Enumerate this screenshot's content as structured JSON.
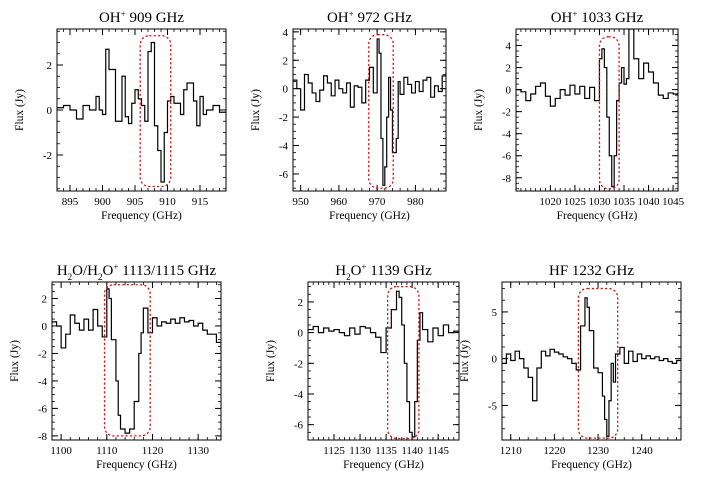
{
  "chart_data": [
    {
      "type": "line",
      "title_main": "OH",
      "title_sup": "+",
      "title_rest": " 909 GHz",
      "xlabel": "Frequency (GHz)",
      "ylabel": "Flux (Jy)",
      "xlim": [
        893,
        919
      ],
      "ylim": [
        -3.6,
        3.6
      ],
      "xticks": [
        895,
        900,
        905,
        910,
        915
      ],
      "yticks": [
        -2,
        0,
        2
      ],
      "highlight": {
        "x": [
          905.8,
          910.5
        ],
        "y": [
          -3.4,
          3.3
        ]
      },
      "series": [
        {
          "x": [
            893,
            894,
            895,
            896,
            897,
            898,
            899,
            899.5,
            900,
            900.5,
            901,
            902,
            903,
            903.5,
            904,
            904.5,
            905,
            905.5,
            906,
            906.5,
            907,
            907.5,
            908,
            908.5,
            909,
            909.5,
            910,
            910.5,
            911,
            912,
            912.5,
            913,
            914,
            914.5,
            915,
            915.5,
            916,
            917,
            918,
            919
          ],
          "y": [
            0.1,
            0.2,
            0.0,
            -0.4,
            0.2,
            0.0,
            0.6,
            0.0,
            -0.2,
            2.7,
            1.8,
            -0.5,
            1.5,
            -0.3,
            -0.6,
            0.3,
            0.9,
            0.5,
            0.2,
            -0.5,
            2.6,
            3.0,
            -0.7,
            -1.8,
            -3.2,
            -1.0,
            0.4,
            0.6,
            0.3,
            -0.2,
            0.9,
            1.2,
            0.4,
            -0.7,
            0.6,
            -0.2,
            0.0,
            0.2,
            -0.1,
            0.0
          ]
        }
      ]
    },
    {
      "type": "line",
      "title_main": "OH",
      "title_sup": "+",
      "title_rest": " 972 GHz",
      "xlabel": "Frequency (GHz)",
      "ylabel": "Flux (Jy)",
      "xlim": [
        948,
        988
      ],
      "ylim": [
        -7.2,
        4.2
      ],
      "xticks": [
        950,
        960,
        970,
        980
      ],
      "yticks": [
        -6,
        -4,
        -2,
        0,
        2,
        4
      ],
      "highlight": {
        "x": [
          967.8,
          974.2
        ],
        "y": [
          -7.0,
          3.8
        ]
      },
      "series": [
        {
          "x": [
            948,
            949,
            950,
            951,
            952,
            953,
            954,
            955,
            956,
            957,
            958,
            959,
            960,
            961,
            962,
            963,
            964,
            965,
            966,
            967,
            968,
            969,
            970,
            970.5,
            971,
            971.5,
            972,
            972.5,
            973,
            973.5,
            974,
            975,
            975.5,
            976,
            977,
            978,
            979,
            980,
            981,
            982,
            983,
            984,
            985,
            986,
            987,
            988
          ],
          "y": [
            0.6,
            0.0,
            -1.5,
            1.0,
            0.4,
            -0.3,
            -0.9,
            -0.1,
            0.9,
            0.4,
            -0.5,
            0.6,
            0.0,
            -0.3,
            0.4,
            -1.3,
            0.2,
            0.1,
            -1.0,
            0.6,
            1.5,
            -0.3,
            3.5,
            2.5,
            -3.5,
            -6.8,
            -5.5,
            -2.0,
            0.8,
            -1.5,
            -4.5,
            -3.5,
            0.5,
            -0.4,
            0.8,
            0.3,
            -0.3,
            0.5,
            -0.2,
            0.6,
            0.8,
            -0.6,
            0.2,
            -0.2,
            0.9,
            1.2
          ]
        }
      ]
    },
    {
      "type": "line",
      "title_main": "OH",
      "title_sup": "+",
      "title_rest": " 1033 GHz",
      "xlabel": "Frequency (GHz)",
      "ylabel": "Flux (Jy)",
      "xlim": [
        1013,
        1046
      ],
      "ylim": [
        -9.2,
        5.5
      ],
      "xticks": [
        1020,
        1025,
        1030,
        1035,
        1040,
        1045
      ],
      "yticks": [
        -8,
        -6,
        -4,
        -2,
        0,
        2,
        4
      ],
      "highlight": {
        "x": [
          1030.0,
          1034.0
        ],
        "y": [
          -9.0,
          4.8
        ]
      },
      "series": [
        {
          "x": [
            1013,
            1014,
            1015,
            1016,
            1017,
            1018,
            1019,
            1020,
            1021,
            1022,
            1023,
            1024,
            1025,
            1026,
            1027,
            1028,
            1029,
            1030,
            1030.5,
            1031,
            1031.5,
            1032,
            1032.5,
            1033,
            1033.5,
            1034,
            1034.5,
            1035,
            1035.5,
            1036,
            1037,
            1038,
            1039,
            1040,
            1041,
            1042,
            1043,
            1044,
            1045,
            1046
          ],
          "y": [
            0.0,
            -0.2,
            -1.0,
            -0.4,
            0.3,
            0.6,
            -0.6,
            -1.5,
            -0.8,
            0.0,
            -0.5,
            0.4,
            -0.4,
            0.3,
            -0.8,
            0.2,
            -1.0,
            2.8,
            3.7,
            2.0,
            -2.5,
            -6.0,
            -8.8,
            -6.0,
            -1.0,
            0.6,
            2.0,
            0.5,
            1.0,
            5.5,
            2.8,
            1.0,
            2.4,
            1.6,
            0.6,
            -0.5,
            -0.8,
            -0.3,
            -0.4,
            -0.2
          ]
        }
      ]
    },
    {
      "type": "line",
      "title_main": "H",
      "title_sub": "2",
      "title_mid": "O/H",
      "title_sub2": "2",
      "title_mid2": "O",
      "title_sup": "+",
      "title_rest": " 1113/1115 GHz",
      "xlabel": "Frequency (GHz)",
      "ylabel": "Flux (Jy)",
      "xlim": [
        1098,
        1135
      ],
      "ylim": [
        -8.3,
        3.2
      ],
      "xticks": [
        1100,
        1110,
        1120,
        1130
      ],
      "yticks": [
        -8,
        -6,
        -4,
        -2,
        0,
        2
      ],
      "highlight": {
        "x": [
          1109.5,
          1119.5
        ],
        "y": [
          -8.0,
          3.0
        ]
      },
      "series": [
        {
          "x": [
            1098,
            1099,
            1100,
            1101,
            1102,
            1103,
            1104,
            1105,
            1106,
            1107,
            1108,
            1109,
            1110,
            1110.5,
            1111,
            1112,
            1112.5,
            1113,
            1114,
            1115,
            1116,
            1117,
            1117.5,
            1118,
            1119,
            1120,
            1121,
            1122,
            1123,
            1124,
            1125,
            1126,
            1127,
            1128,
            1129,
            1130,
            1131,
            1132,
            1133,
            1134,
            1135
          ],
          "y": [
            0.3,
            0.0,
            -1.6,
            -0.6,
            0.8,
            0.2,
            -0.3,
            0.5,
            -0.3,
            1.2,
            0.0,
            -0.8,
            2.7,
            2.0,
            -1.0,
            -4.0,
            -6.5,
            -7.5,
            -7.8,
            -7.5,
            -5.5,
            -2.0,
            -0.5,
            1.3,
            -0.5,
            0.6,
            0.0,
            0.3,
            0.2,
            0.5,
            0.2,
            0.6,
            0.3,
            0.4,
            0.0,
            0.2,
            -0.3,
            -0.6,
            -0.6,
            -1.2,
            -1.8
          ]
        }
      ]
    },
    {
      "type": "line",
      "title_main": "H",
      "title_sub": "2",
      "title_mid": "O",
      "title_sup": "+",
      "title_rest": " 1139 GHz",
      "xlabel": "Frequency (GHz)",
      "ylabel": "Flux (Jy)",
      "xlim": [
        1120,
        1149
      ],
      "ylim": [
        -7.0,
        3.3
      ],
      "xticks": [
        1125,
        1130,
        1135,
        1140,
        1145
      ],
      "yticks": [
        -6,
        -4,
        -2,
        0,
        2
      ],
      "highlight": {
        "x": [
          1135.3,
          1141.3
        ],
        "y": [
          -6.9,
          3.0
        ]
      },
      "series": [
        {
          "x": [
            1120,
            1121,
            1122,
            1123,
            1124,
            1125,
            1126,
            1127,
            1128,
            1129,
            1130,
            1131,
            1132,
            1133,
            1134,
            1135,
            1136,
            1137,
            1137.5,
            1138,
            1138.5,
            1139,
            1139.5,
            1140,
            1140.5,
            1141,
            1141.5,
            1142,
            1143,
            1144,
            1145,
            1146,
            1147,
            1148,
            1149
          ],
          "y": [
            0.2,
            0.4,
            0.0,
            0.3,
            0.1,
            0.2,
            0.0,
            -0.2,
            0.3,
            -0.1,
            0.4,
            0.3,
            0.0,
            -0.3,
            -1.3,
            0.3,
            1.5,
            2.7,
            2.3,
            0.5,
            -2.0,
            -4.5,
            -6.5,
            -6.8,
            -4.5,
            -0.5,
            1.3,
            0.2,
            -0.6,
            0.3,
            -0.2,
            0.5,
            0.0,
            0.1,
            0.0
          ]
        }
      ]
    },
    {
      "type": "line",
      "title_main": "HF 1232 GHz",
      "xlabel": "Frequency (GHz)",
      "ylabel": "Flux (Jy)",
      "xlim": [
        1208,
        1249
      ],
      "ylim": [
        -8.7,
        8.2
      ],
      "xticks": [
        1210,
        1220,
        1230,
        1240
      ],
      "yticks": [
        -5,
        0,
        5
      ],
      "highlight": {
        "x": [
          1225.5,
          1234.5
        ],
        "y": [
          -8.5,
          7.5
        ]
      },
      "series": [
        {
          "x": [
            1208,
            1209,
            1210,
            1211,
            1212,
            1213,
            1214,
            1215,
            1216,
            1217,
            1218,
            1219,
            1220,
            1221,
            1222,
            1223,
            1224,
            1225,
            1226,
            1227,
            1227.5,
            1228,
            1229,
            1230,
            1231,
            1231.5,
            1232,
            1232.5,
            1233,
            1233.5,
            1234,
            1235,
            1236,
            1237,
            1238,
            1239,
            1240,
            1241,
            1242,
            1243,
            1244,
            1245,
            1246,
            1247,
            1248,
            1249
          ],
          "y": [
            -0.5,
            0.5,
            -0.2,
            0.8,
            0.0,
            -1.0,
            -2.0,
            -4.5,
            -1.0,
            0.8,
            0.3,
            1.0,
            0.7,
            0.5,
            0.2,
            0.0,
            -0.5,
            -1.2,
            3.5,
            6.5,
            5.5,
            3.0,
            -1.0,
            -1.5,
            -4.0,
            -6.5,
            -8.3,
            -4.5,
            -0.5,
            -2.5,
            0.5,
            1.2,
            -0.5,
            0.8,
            -0.3,
            0.5,
            0.0,
            0.3,
            0.0,
            0.2,
            -0.2,
            0.0,
            -0.3,
            -0.5,
            -0.2,
            -0.1
          ]
        }
      ]
    }
  ]
}
